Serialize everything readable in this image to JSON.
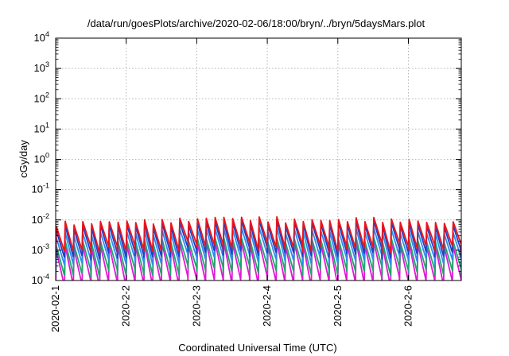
{
  "chart_data": {
    "type": "line",
    "title": "/data/run/goesPlots/archive/2020-02-06/18:00/bryn/../bryn/5daysMars.plot",
    "xlabel": "Coordinated Universal Time (UTC)",
    "ylabel": "cGy/day",
    "yscale": "log",
    "ylim": [
      0.0001,
      10000
    ],
    "xlim": [
      "2020-02-01",
      "2020-02-06 18:00"
    ],
    "grid": true,
    "legend": "none",
    "x_ticks": [
      "2020-02-1",
      "2020-2-2",
      "2020-2-3",
      "2020-2-4",
      "2020-2-5",
      "2020-2-6"
    ],
    "y_ticks": [
      {
        "base": "10",
        "exp": "-4"
      },
      {
        "base": "10",
        "exp": "-3"
      },
      {
        "base": "10",
        "exp": "-2"
      },
      {
        "base": "10",
        "exp": "-1"
      },
      {
        "base": "10",
        "exp": "0"
      },
      {
        "base": "10",
        "exp": "1"
      },
      {
        "base": "10",
        "exp": "2"
      },
      {
        "base": "10",
        "exp": "3"
      },
      {
        "base": "10",
        "exp": "4"
      }
    ],
    "series": [
      {
        "color": "#e8151b",
        "peaks": [
          0.0075,
          0.008,
          0.0085,
          0.0095,
          0.011,
          0.0105,
          0.009,
          0.009,
          0.01,
          0.009,
          0.0075
        ],
        "troughs": [
          0.0011,
          0.0012,
          0.0011,
          0.0016,
          0.0014,
          0.0015,
          0.0013,
          0.0012,
          0.0014,
          0.0014,
          0.0013
        ]
      },
      {
        "color": "#1f3fc8",
        "peaks": [
          0.0055,
          0.006,
          0.0065,
          0.007,
          0.008,
          0.008,
          0.007,
          0.007,
          0.0078,
          0.0068,
          0.0056
        ],
        "troughs": [
          0.0007,
          0.00075,
          0.0007,
          0.001,
          0.0009,
          0.001,
          0.0009,
          0.0008,
          0.0009,
          0.0009,
          0.0008
        ]
      },
      {
        "color": "#2f8cf0",
        "peaks": [
          0.0032,
          0.0035,
          0.0038,
          0.0042,
          0.0048,
          0.0047,
          0.0041,
          0.004,
          0.0045,
          0.004,
          0.0033
        ],
        "troughs": [
          0.0004,
          0.00045,
          0.0004,
          0.0006,
          0.00055,
          0.0006,
          0.0005,
          0.00048,
          0.00055,
          0.00052,
          0.00046
        ]
      },
      {
        "color": "#1fa66a",
        "peaks": [
          0.0017,
          0.0018,
          0.0019,
          0.0021,
          0.0023,
          0.0022,
          0.002,
          0.002,
          0.0022,
          0.002,
          0.0017
        ],
        "troughs": [
          0.00018,
          0.0002,
          0.00018,
          0.00026,
          0.00024,
          0.00026,
          0.00022,
          0.00021,
          0.00024,
          0.00023,
          0.0002
        ]
      },
      {
        "color": "#e019d6",
        "peaks": [
          0.0012,
          0.0013,
          0.0014,
          0.0015,
          0.0017,
          0.0016,
          0.0015,
          0.0015,
          0.0016,
          0.0015,
          0.0012
        ],
        "troughs": [
          8e-05,
          8e-05,
          8e-05,
          0.00011,
          0.0001,
          0.00011,
          9e-05,
          9e-05,
          0.0001,
          0.0001,
          9e-05
        ]
      }
    ]
  }
}
